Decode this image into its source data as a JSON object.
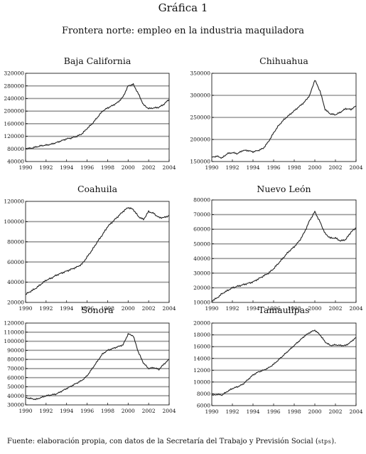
{
  "header": {
    "title": "Gráfica 1",
    "subtitle": "Frontera norte: empleo en la industria maquiladora"
  },
  "footer": {
    "source_prefix": "Fuente: elaboración propia, con datos de la Secretaría del Trabajo y Previsión Social (",
    "source_abbr": "stps",
    "source_suffix": ")."
  },
  "colors": {
    "line": "#222222",
    "grid": "#999999",
    "axis": "#000000"
  },
  "chart_data": [
    {
      "type": "line",
      "title": "Baja California",
      "xlim": [
        1990,
        2004
      ],
      "xticks": [
        1990,
        1992,
        1994,
        1996,
        1998,
        2000,
        2002,
        2004
      ],
      "ylim": [
        40000,
        320000
      ],
      "yticks": [
        40000,
        80000,
        120000,
        160000,
        200000,
        240000,
        280000,
        320000
      ],
      "grid": true,
      "x": [
        1990,
        1990.5,
        1991,
        1991.5,
        1992,
        1992.5,
        1993,
        1993.5,
        1994,
        1994.5,
        1995,
        1995.5,
        1996,
        1996.5,
        1997,
        1997.5,
        1998,
        1998.5,
        1999,
        1999.5,
        2000,
        2000.5,
        2001,
        2001.5,
        2002,
        2002.5,
        2003,
        2003.5,
        2004
      ],
      "values": [
        82000,
        82000,
        86000,
        90000,
        92000,
        95000,
        100000,
        106000,
        112000,
        115000,
        120000,
        128000,
        145000,
        160000,
        180000,
        200000,
        210000,
        218000,
        228000,
        245000,
        280000,
        285000,
        255000,
        220000,
        208000,
        210000,
        212000,
        222000,
        238000
      ]
    },
    {
      "type": "line",
      "title": "Chihuahua",
      "xlim": [
        1990,
        2004
      ],
      "xticks": [
        1990,
        1992,
        1994,
        1996,
        1998,
        2000,
        2002,
        2004
      ],
      "ylim": [
        150000,
        350000
      ],
      "yticks": [
        150000,
        200000,
        250000,
        300000,
        350000
      ],
      "grid": true,
      "x": [
        1990,
        1990.5,
        1991,
        1991.5,
        1992,
        1992.5,
        1993,
        1993.5,
        1994,
        1994.5,
        1995,
        1995.5,
        1996,
        1996.5,
        1997,
        1997.5,
        1998,
        1998.5,
        1999,
        1999.5,
        2000,
        2000.5,
        2001,
        2001.5,
        2002,
        2002.5,
        2003,
        2003.5,
        2004
      ],
      "values": [
        160000,
        162000,
        158000,
        168000,
        170000,
        168000,
        175000,
        175000,
        172000,
        175000,
        180000,
        195000,
        215000,
        232000,
        245000,
        255000,
        265000,
        275000,
        285000,
        300000,
        335000,
        310000,
        268000,
        258000,
        256000,
        262000,
        270000,
        268000,
        276000
      ]
    },
    {
      "type": "line",
      "title": "Coahuila",
      "xlim": [
        1990,
        2004
      ],
      "xticks": [
        1990,
        1992,
        1994,
        1996,
        1998,
        2000,
        2002,
        2004
      ],
      "ylim": [
        20000,
        120000
      ],
      "yticks": [
        20000,
        40000,
        60000,
        80000,
        100000,
        120000
      ],
      "grid": true,
      "x": [
        1990,
        1990.5,
        1991,
        1991.5,
        1992,
        1992.5,
        1993,
        1993.5,
        1994,
        1994.5,
        1995,
        1995.5,
        1996,
        1996.5,
        1997,
        1997.5,
        1998,
        1998.5,
        1999,
        1999.5,
        2000,
        2000.5,
        2001,
        2001.5,
        2002,
        2002.5,
        2003,
        2003.5,
        2004
      ],
      "values": [
        28000,
        31000,
        34000,
        38000,
        42000,
        44000,
        47000,
        49000,
        51000,
        53000,
        55000,
        58000,
        65000,
        72000,
        80000,
        87000,
        95000,
        100000,
        105000,
        110000,
        114000,
        112000,
        105000,
        102000,
        110000,
        108000,
        104000,
        104000,
        106000
      ]
    },
    {
      "type": "line",
      "title": "Nuevo León",
      "xlim": [
        1990,
        2004
      ],
      "xticks": [
        1990,
        1992,
        1994,
        1996,
        1998,
        2000,
        2002,
        2004
      ],
      "ylim": [
        10000,
        80000
      ],
      "yticks": [
        10000,
        20000,
        30000,
        40000,
        50000,
        60000,
        70000,
        80000
      ],
      "grid": true,
      "x": [
        1990,
        1990.5,
        1991,
        1991.5,
        1992,
        1992.5,
        1993,
        1993.5,
        1994,
        1994.5,
        1995,
        1995.5,
        1996,
        1996.5,
        1997,
        1997.5,
        1998,
        1998.5,
        1999,
        1999.5,
        2000,
        2000.5,
        2001,
        2001.5,
        2002,
        2002.5,
        2003,
        2003.5,
        2004
      ],
      "values": [
        11000,
        13000,
        16000,
        18000,
        20000,
        21000,
        22000,
        23000,
        24000,
        26000,
        28000,
        30000,
        33000,
        37000,
        41000,
        45000,
        48000,
        52000,
        58000,
        66000,
        72000,
        65000,
        57000,
        54000,
        54000,
        52000,
        53000,
        58000,
        61000
      ]
    },
    {
      "type": "line",
      "title": "Sonora",
      "xlim": [
        1990,
        2004
      ],
      "xticks": [
        1990,
        1992,
        1994,
        1996,
        1998,
        2000,
        2002,
        2004
      ],
      "ylim": [
        30000,
        120000
      ],
      "yticks": [
        30000,
        40000,
        50000,
        60000,
        70000,
        80000,
        90000,
        100000,
        110000,
        120000
      ],
      "grid": true,
      "x": [
        1990,
        1990.5,
        1991,
        1991.5,
        1992,
        1992.5,
        1993,
        1993.5,
        1994,
        1994.5,
        1995,
        1995.5,
        1996,
        1996.5,
        1997,
        1997.5,
        1998,
        1998.5,
        1999,
        1999.5,
        2000,
        2000.5,
        2001,
        2001.5,
        2002,
        2002.5,
        2003,
        2003.5,
        2004
      ],
      "values": [
        38000,
        37000,
        36000,
        38000,
        40000,
        41000,
        42000,
        45000,
        48000,
        51000,
        54000,
        57000,
        62000,
        70000,
        78000,
        86000,
        90000,
        92000,
        94000,
        96000,
        108000,
        106000,
        88000,
        76000,
        70000,
        71000,
        69000,
        75000,
        80000
      ]
    },
    {
      "type": "line",
      "title": "Tamaulipas",
      "xlim": [
        1990,
        2004
      ],
      "xticks": [
        1990,
        1992,
        1994,
        1996,
        1998,
        2000,
        2002,
        2004
      ],
      "ylim": [
        6000,
        20000
      ],
      "yticks": [
        6000,
        8000,
        10000,
        12000,
        14000,
        16000,
        18000,
        20000
      ],
      "grid": true,
      "x": [
        1990,
        1990.5,
        1991,
        1991.5,
        1992,
        1992.5,
        1993,
        1993.5,
        1994,
        1994.5,
        1995,
        1995.5,
        1996,
        1996.5,
        1997,
        1997.5,
        1998,
        1998.5,
        1999,
        1999.5,
        2000,
        2000.5,
        2001,
        2001.5,
        2002,
        2002.5,
        2003,
        2003.5,
        2004
      ],
      "values": [
        7700,
        7900,
        7800,
        8400,
        8900,
        9200,
        9600,
        10400,
        11200,
        11700,
        12000,
        12400,
        13000,
        13800,
        14600,
        15400,
        16200,
        17000,
        17800,
        18400,
        18800,
        18000,
        16800,
        16200,
        16300,
        16200,
        16200,
        16800,
        17600
      ]
    }
  ]
}
